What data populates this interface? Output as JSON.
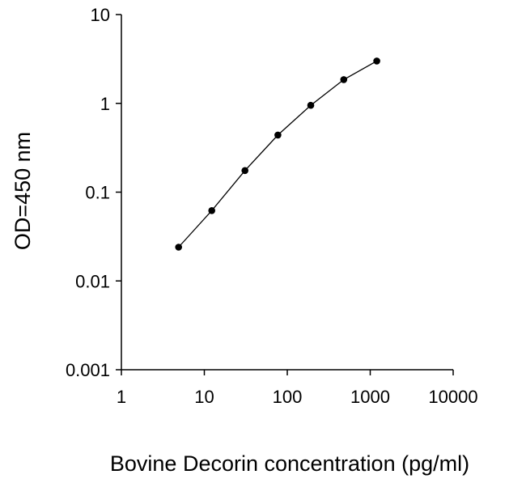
{
  "chart_data": {
    "type": "line",
    "title": "",
    "xlabel": "Bovine Decorin concentration (pg/ml)",
    "ylabel": "OD=450 nm",
    "xscale": "log",
    "yscale": "log",
    "xlim": [
      1,
      10000
    ],
    "ylim": [
      0.001,
      10
    ],
    "x_ticks": [
      {
        "value": 1,
        "label": "1"
      },
      {
        "value": 10,
        "label": "10"
      },
      {
        "value": 100,
        "label": "100"
      },
      {
        "value": 1000,
        "label": "1000"
      },
      {
        "value": 10000,
        "label": "10000"
      }
    ],
    "y_ticks": [
      {
        "value": 0.001,
        "label": "0.001"
      },
      {
        "value": 0.01,
        "label": "0.01"
      },
      {
        "value": 0.1,
        "label": "0.1"
      },
      {
        "value": 1,
        "label": "1"
      },
      {
        "value": 10,
        "label": "10"
      }
    ],
    "grid": false,
    "legend": "none",
    "series": [
      {
        "x": [
          4.9,
          12.3,
          30.9,
          77,
          192,
          480,
          1200
        ],
        "y": [
          0.024,
          0.062,
          0.175,
          0.44,
          0.95,
          1.85,
          3.0
        ],
        "color": "#000000",
        "marker": "circle"
      }
    ]
  }
}
